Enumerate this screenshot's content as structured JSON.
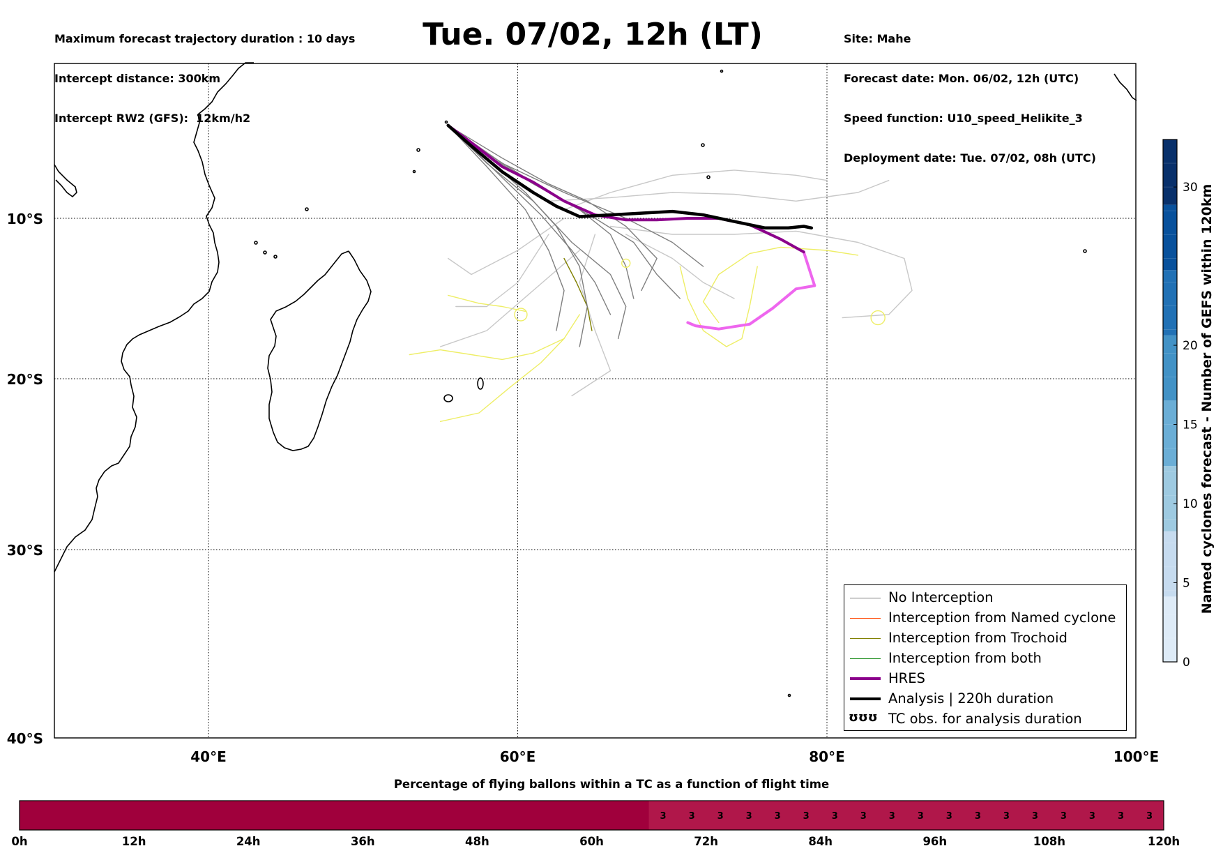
{
  "header": {
    "left_lines": [
      "Maximum forecast trajectory duration : 10 days",
      "Intercept distance: 300km",
      "Intercept RW2 (GFS):  12km/h2"
    ],
    "title": "Tue. 07/02, 12h (LT)",
    "right_lines": [
      "Site: Mahe",
      "Forecast date: Mon. 06/02, 12h (UTC)",
      "Speed function: U10_speed_Helikite_3",
      "Deployment date: Tue. 07/02, 08h (UTC)"
    ]
  },
  "colors": {
    "no_interception": "#7f7f7f",
    "no_interception_light": "#c8c8c8",
    "named_cyclone": "#ff4500",
    "trochoid": "#808000",
    "both": "#008000",
    "hres": "#8b008b",
    "hres_light": "#ee66ee",
    "analysis": "#000000",
    "yellow_tracks": "#eeee66",
    "timeline_main": "#a0003c",
    "timeline_part": "#b0174a"
  },
  "chart_data": [
    {
      "type": "line",
      "subtype": "map-trajectories",
      "xlim": [
        30,
        100
      ],
      "ylim": [
        -40,
        -1
      ],
      "x_ticks": [
        40,
        60,
        80,
        100
      ],
      "x_tick_labels": [
        "40°E",
        "60°E",
        "80°E",
        "100°E"
      ],
      "y_ticks": [
        -10,
        -20,
        -30,
        -40
      ],
      "y_tick_labels": [
        "10°S",
        "20°S",
        "30°S",
        "40°S"
      ],
      "grid": true,
      "legend_position": "bottom-right",
      "legend": [
        {
          "label": "No Interception",
          "style": "no_interception"
        },
        {
          "label": "Interception from Named cyclone",
          "style": "named_cyclone"
        },
        {
          "label": "Interception from Trochoid",
          "style": "trochoid"
        },
        {
          "label": "Interception from both",
          "style": "both"
        },
        {
          "label": "HRES",
          "style": "hres"
        },
        {
          "label": "Analysis | 220h duration",
          "style": "analysis"
        },
        {
          "label": "TC obs. for analysis duration",
          "style": "tc_obs",
          "glyph": "ʊʊʊ"
        }
      ],
      "series": [
        {
          "style": "analysis",
          "points": [
            [
              55.5,
              -4.6
            ],
            [
              57,
              -5.8
            ],
            [
              59,
              -7.3
            ],
            [
              61,
              -8.5
            ],
            [
              62.5,
              -9.3
            ],
            [
              64,
              -9.9
            ],
            [
              66,
              -9.8
            ],
            [
              68,
              -9.7
            ],
            [
              70,
              -9.6
            ],
            [
              72,
              -9.8
            ],
            [
              74,
              -10.2
            ],
            [
              76,
              -10.6
            ],
            [
              77.5,
              -10.6
            ],
            [
              78.5,
              -10.5
            ],
            [
              79,
              -10.6
            ]
          ]
        },
        {
          "style": "hres",
          "points": [
            [
              55.5,
              -4.6
            ],
            [
              57,
              -5.6
            ],
            [
              59,
              -7
            ],
            [
              61,
              -7.9
            ],
            [
              63,
              -9
            ],
            [
              65,
              -9.8
            ],
            [
              67,
              -10.1
            ],
            [
              69,
              -10.1
            ],
            [
              71,
              -10
            ],
            [
              73,
              -10
            ],
            [
              75,
              -10.4
            ],
            [
              77,
              -11.3
            ],
            [
              78.5,
              -12.1
            ]
          ]
        },
        {
          "style": "hres_light",
          "points": [
            [
              78.5,
              -12.1
            ],
            [
              79.2,
              -14.2
            ],
            [
              78,
              -14.4
            ],
            [
              76.5,
              -15.6
            ],
            [
              75,
              -16.6
            ],
            [
              73,
              -16.9
            ],
            [
              71.5,
              -16.7
            ],
            [
              71,
              -16.5
            ]
          ]
        },
        {
          "style": "no_interception",
          "points": [
            [
              55.5,
              -4.6
            ],
            [
              58,
              -6.5
            ],
            [
              60.5,
              -8.5
            ],
            [
              62.5,
              -10.5
            ],
            [
              64,
              -13
            ],
            [
              64.5,
              -15.5
            ],
            [
              64,
              -18
            ]
          ]
        },
        {
          "style": "no_interception",
          "points": [
            [
              55.5,
              -4.6
            ],
            [
              58,
              -6.8
            ],
            [
              61,
              -9
            ],
            [
              63.5,
              -11.5
            ],
            [
              66,
              -13.5
            ],
            [
              67,
              -15.5
            ],
            [
              66.5,
              -17.5
            ]
          ]
        },
        {
          "style": "no_interception",
          "points": [
            [
              55.5,
              -4.6
            ],
            [
              58.5,
              -6.5
            ],
            [
              62,
              -8.5
            ],
            [
              65,
              -10
            ],
            [
              67.5,
              -11.5
            ],
            [
              69,
              -13.5
            ],
            [
              70.5,
              -15
            ]
          ]
        },
        {
          "style": "no_interception",
          "points": [
            [
              55.5,
              -4.6
            ],
            [
              58,
              -6.3
            ],
            [
              61,
              -8
            ],
            [
              64,
              -9.5
            ],
            [
              66,
              -11
            ],
            [
              67,
              -13
            ],
            [
              67.5,
              -15
            ]
          ]
        },
        {
          "style": "no_interception",
          "points": [
            [
              55.5,
              -4.6
            ],
            [
              58,
              -7
            ],
            [
              60.5,
              -9.5
            ],
            [
              62,
              -12
            ],
            [
              63,
              -14.5
            ],
            [
              62.5,
              -17
            ]
          ]
        },
        {
          "style": "no_interception",
          "points": [
            [
              55.5,
              -4.6
            ],
            [
              59,
              -6.8
            ],
            [
              63,
              -8.5
            ],
            [
              67,
              -10
            ],
            [
              70,
              -11.5
            ],
            [
              72,
              -13
            ]
          ]
        },
        {
          "style": "no_interception",
          "points": [
            [
              55.5,
              -4.6
            ],
            [
              58.5,
              -7.2
            ],
            [
              61.5,
              -9.8
            ],
            [
              63.5,
              -12
            ],
            [
              65,
              -14
            ],
            [
              66,
              -16
            ]
          ]
        },
        {
          "style": "no_interception",
          "points": [
            [
              55.5,
              -4.6
            ],
            [
              59,
              -6.5
            ],
            [
              62,
              -8
            ],
            [
              64.5,
              -9
            ],
            [
              67,
              -10.5
            ],
            [
              69,
              -12.5
            ],
            [
              68,
              -14.5
            ]
          ]
        },
        {
          "style": "no_interception_light",
          "points": [
            [
              63,
              -9.5
            ],
            [
              66,
              -8.5
            ],
            [
              70,
              -7.5
            ],
            [
              74,
              -7.2
            ],
            [
              78,
              -7.5
            ],
            [
              80,
              -7.8
            ]
          ]
        },
        {
          "style": "no_interception_light",
          "points": [
            [
              62,
              -9
            ],
            [
              66,
              -8.8
            ],
            [
              70,
              -8.5
            ],
            [
              74,
              -8.6
            ],
            [
              78,
              -9
            ],
            [
              82,
              -8.5
            ],
            [
              84,
              -7.8
            ]
          ]
        },
        {
          "style": "no_interception_light",
          "points": [
            [
              66,
              -10.5
            ],
            [
              70,
              -11
            ],
            [
              74,
              -11
            ],
            [
              78,
              -10.8
            ],
            [
              82,
              -11.5
            ],
            [
              85,
              -12.5
            ],
            [
              85.5,
              -14.5
            ],
            [
              84,
              -16
            ],
            [
              81,
              -16.2
            ]
          ]
        },
        {
          "style": "no_interception_light",
          "points": [
            [
              63,
              -10
            ],
            [
              60,
              -12
            ],
            [
              57,
              -13.5
            ],
            [
              55.5,
              -12.5
            ]
          ]
        },
        {
          "style": "no_interception_light",
          "points": [
            [
              62,
              -11
            ],
            [
              60,
              -14
            ],
            [
              58,
              -15.5
            ],
            [
              56,
              -15.5
            ]
          ]
        },
        {
          "style": "no_interception_light",
          "points": [
            [
              65,
              -11
            ],
            [
              64,
              -14
            ],
            [
              65,
              -17
            ],
            [
              66,
              -19.5
            ],
            [
              63.5,
              -21
            ]
          ]
        },
        {
          "style": "no_interception_light",
          "points": [
            [
              64,
              -12
            ],
            [
              61,
              -14.5
            ],
            [
              58,
              -17
            ],
            [
              55,
              -18
            ]
          ]
        },
        {
          "style": "no_interception_light",
          "points": [
            [
              67,
              -11
            ],
            [
              70,
              -12.5
            ],
            [
              72,
              -14
            ],
            [
              74,
              -15
            ]
          ]
        },
        {
          "style": "trochoid",
          "points": [
            [
              63,
              -12.5
            ],
            [
              63.8,
              -14
            ],
            [
              64.5,
              -15.5
            ],
            [
              64.8,
              -17
            ]
          ]
        },
        {
          "style": "yellow_tracks",
          "points": [
            [
              55,
              -22.5
            ],
            [
              57.5,
              -22
            ],
            [
              59.5,
              -20.5
            ],
            [
              61.5,
              -19
            ],
            [
              63,
              -17.5
            ],
            [
              64,
              -16
            ]
          ]
        },
        {
          "style": "yellow_tracks",
          "points": [
            [
              53,
              -18.5
            ],
            [
              55,
              -18.2
            ],
            [
              57,
              -18.5
            ],
            [
              59,
              -18.8
            ],
            [
              61,
              -18.4
            ],
            [
              63,
              -17.5
            ]
          ]
        },
        {
          "style": "yellow_tracks",
          "points": [
            [
              55.5,
              -14.8
            ],
            [
              57.5,
              -15.3
            ],
            [
              59,
              -15.5
            ],
            [
              60.5,
              -15.8
            ]
          ]
        },
        {
          "style": "yellow_tracks",
          "points": [
            [
              73,
              -16.5
            ],
            [
              72,
              -15.2
            ],
            [
              73,
              -13.5
            ],
            [
              75,
              -12.2
            ],
            [
              77,
              -11.8
            ],
            [
              80,
              -12
            ],
            [
              82,
              -12.3
            ]
          ]
        },
        {
          "style": "yellow_tracks",
          "points": [
            [
              70.5,
              -13
            ],
            [
              71,
              -15
            ],
            [
              72,
              -17
            ],
            [
              73.5,
              -18
            ],
            [
              74.5,
              -17.5
            ],
            [
              75,
              -15.5
            ],
            [
              75.5,
              -13
            ]
          ]
        }
      ]
    },
    {
      "type": "heatmap",
      "subtype": "colorbar",
      "label": "Named cyclones forecast - Number of GEFS within 120km",
      "range": [
        0,
        33
      ],
      "ticks": [
        0,
        5,
        10,
        15,
        20,
        30
      ],
      "colors": [
        "#deebf7",
        "#c6dbef",
        "#9ecae1",
        "#6baed6",
        "#4292c6",
        "#2171b5",
        "#08519c",
        "#08306b"
      ]
    },
    {
      "type": "bar",
      "subtype": "timeline",
      "title": "Percentage of flying ballons within a TC as a function of flight time",
      "x_range_hours": [
        0,
        120
      ],
      "x_ticks": [
        0,
        12,
        24,
        36,
        48,
        60,
        72,
        84,
        96,
        108,
        120
      ],
      "x_tick_labels": [
        "0h",
        "12h",
        "24h",
        "36h",
        "48h",
        "60h",
        "72h",
        "84h",
        "96h",
        "108h",
        "120h"
      ],
      "values_start_hour": 66,
      "value_step_hours": 3,
      "values": [
        3,
        3,
        3,
        3,
        3,
        3,
        3,
        3,
        3,
        3,
        3,
        3,
        3,
        3,
        3,
        3,
        3,
        3
      ]
    }
  ]
}
